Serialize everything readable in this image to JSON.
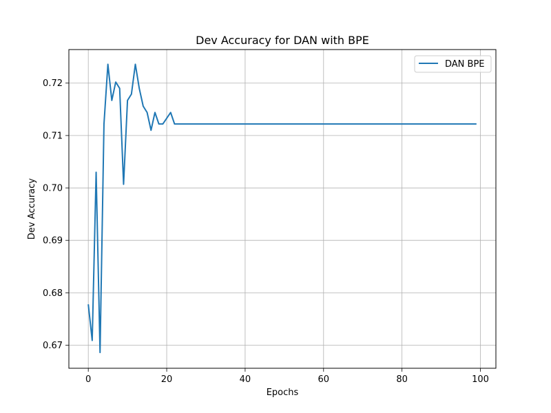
{
  "chart_data": {
    "type": "line",
    "title": "Dev Accuracy for DAN with BPE",
    "xlabel": "Epochs",
    "ylabel": "Dev Accuracy",
    "xlim": [
      -4.95,
      103.95
    ],
    "ylim": [
      0.6656,
      0.7264
    ],
    "xticks": [
      0,
      20,
      40,
      60,
      80,
      100
    ],
    "yticks": [
      0.67,
      0.68,
      0.69,
      0.7,
      0.71,
      0.72
    ],
    "ytick_labels": [
      "0.67",
      "0.68",
      "0.69",
      "0.70",
      "0.71",
      "0.72"
    ],
    "grid": true,
    "legend_position": "top-right",
    "series": [
      {
        "name": "DAN BPE",
        "color": "#1f77b4",
        "x": [
          0,
          1,
          2,
          3,
          4,
          5,
          6,
          7,
          8,
          9,
          10,
          11,
          12,
          13,
          14,
          15,
          16,
          17,
          18,
          19,
          20,
          21,
          22,
          23,
          24,
          25,
          26,
          27,
          28,
          29,
          30,
          31,
          32,
          33,
          34,
          35,
          36,
          37,
          38,
          39,
          40,
          41,
          42,
          43,
          44,
          45,
          46,
          47,
          48,
          49,
          50,
          51,
          52,
          53,
          54,
          55,
          56,
          57,
          58,
          59,
          60,
          61,
          62,
          63,
          64,
          65,
          66,
          67,
          68,
          69,
          70,
          71,
          72,
          73,
          74,
          75,
          76,
          77,
          78,
          79,
          80,
          81,
          82,
          83,
          84,
          85,
          86,
          87,
          88,
          89,
          90,
          91,
          92,
          93,
          94,
          95,
          96,
          97,
          98,
          99
        ],
        "y": [
          0.6778,
          0.6709,
          0.703,
          0.6686,
          0.7122,
          0.7236,
          0.7167,
          0.7202,
          0.719,
          0.7007,
          0.7167,
          0.7179,
          0.7236,
          0.719,
          0.7156,
          0.7144,
          0.711,
          0.7144,
          0.7122,
          0.7122,
          0.7133,
          0.7144,
          0.7122,
          0.7122,
          0.7122,
          0.7122,
          0.7122,
          0.7122,
          0.7122,
          0.7122,
          0.7122,
          0.7122,
          0.7122,
          0.7122,
          0.7122,
          0.7122,
          0.7122,
          0.7122,
          0.7122,
          0.7122,
          0.7122,
          0.7122,
          0.7122,
          0.7122,
          0.7122,
          0.7122,
          0.7122,
          0.7122,
          0.7122,
          0.7122,
          0.7122,
          0.7122,
          0.7122,
          0.7122,
          0.7122,
          0.7122,
          0.7122,
          0.7122,
          0.7122,
          0.7122,
          0.7122,
          0.7122,
          0.7122,
          0.7122,
          0.7122,
          0.7122,
          0.7122,
          0.7122,
          0.7122,
          0.7122,
          0.7122,
          0.7122,
          0.7122,
          0.7122,
          0.7122,
          0.7122,
          0.7122,
          0.7122,
          0.7122,
          0.7122,
          0.7122,
          0.7122,
          0.7122,
          0.7122,
          0.7122,
          0.7122,
          0.7122,
          0.7122,
          0.7122,
          0.7122,
          0.7122,
          0.7122,
          0.7122,
          0.7122,
          0.7122,
          0.7122,
          0.7122,
          0.7122,
          0.7122,
          0.7122
        ]
      }
    ]
  }
}
